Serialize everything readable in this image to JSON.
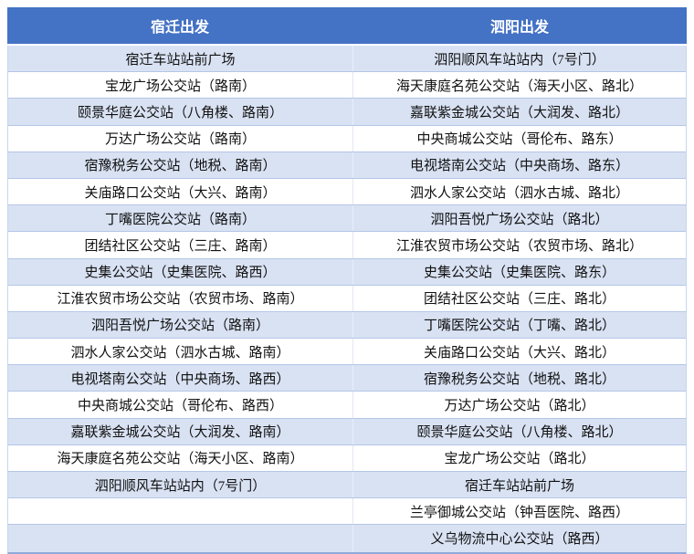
{
  "table": {
    "headers": [
      {
        "label": "宿迁出发"
      },
      {
        "label": "泗阳出发"
      }
    ],
    "rows": [
      [
        "宿迁车站站前广场",
        "泗阳顺风车站站内（7号门）"
      ],
      [
        "宝龙广场公交站（路南）",
        "海天康庭名苑公交站（海天小区、路北）"
      ],
      [
        "颐景华庭公交站（八角楼、路南）",
        "嘉联紫金城公交站（大润发、路北）"
      ],
      [
        "万达广场公交站（路南）",
        "中央商城公交站（哥伦布、路东）"
      ],
      [
        "宿豫税务公交站（地税、路南）",
        "电视塔南公交站（中央商场、路东）"
      ],
      [
        "关庙路口公交站（大兴、路南）",
        "泗水人家公交站（泗水古城、路北）"
      ],
      [
        "丁嘴医院公交站（路南）",
        "泗阳吾悦广场公交站（路北）"
      ],
      [
        "团结社区公交站（三庄、路南）",
        "江淮农贸市场公交站（农贸市场、路北）"
      ],
      [
        "史集公交站（史集医院、路西）",
        "史集公交站（史集医院、路东）"
      ],
      [
        "江淮农贸市场公交站（农贸市场、路南）",
        "团结社区公交站（三庄、路北）"
      ],
      [
        "泗阳吾悦广场公交站（路南）",
        "丁嘴医院公交站（丁嘴、路北）"
      ],
      [
        "泗水人家公交站（泗水古城、路南）",
        "关庙路口公交站（大兴、路北）"
      ],
      [
        "电视塔南公交站（中央商场、路西）",
        "宿豫税务公交站（地税、路北）"
      ],
      [
        "中央商城公交站（哥伦布、路西）",
        "万达广场公交站（路北）"
      ],
      [
        "嘉联紫金城公交站（大润发、路南）",
        "颐景华庭公交站（八角楼、路北）"
      ],
      [
        "海天康庭名苑公交站（海天小区、路南）",
        "宝龙广场公交站（路北）"
      ],
      [
        "泗阳顺风车站站内（7号门）",
        "宿迁车站站前广场"
      ],
      [
        "",
        "兰亭御城公交站（钟吾医院、路西）"
      ],
      [
        "",
        "义乌物流中心公交站（路西）"
      ]
    ],
    "colors": {
      "header_bg": "#4472C4",
      "header_text": "#FFFFFF",
      "band_bg": "#D9E2F3",
      "row_bg": "#FFFFFF",
      "border": "#8FA9DB",
      "border_light": "#B4C6E7",
      "body_text": "#111111"
    }
  }
}
